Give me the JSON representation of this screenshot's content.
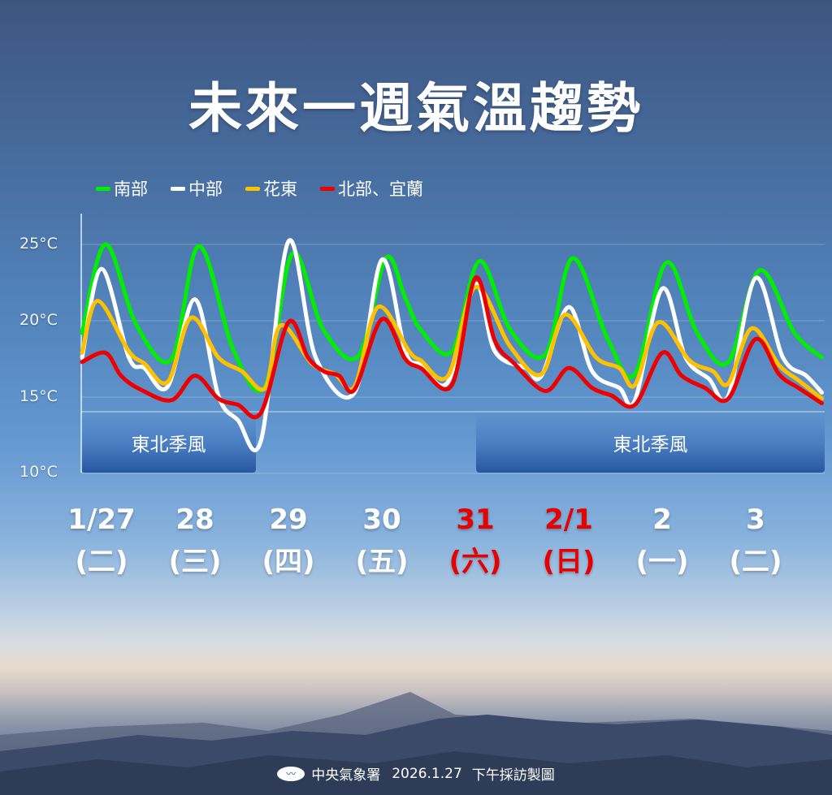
{
  "title": "未來一週氣溫趨勢",
  "chart_data": {
    "type": "line",
    "title": "未來一週氣溫趨勢",
    "ylim": [
      10,
      27
    ],
    "y_ticks": [
      "25°C",
      "20°C",
      "15°C",
      "10°C"
    ],
    "y_tick_values": [
      25,
      20,
      15,
      10
    ],
    "grid": true,
    "legend": "top",
    "x_days": [
      {
        "date": "1/27",
        "weekday": "(二)",
        "color": "#ffffff"
      },
      {
        "date": "28",
        "weekday": "(三)",
        "color": "#ffffff"
      },
      {
        "date": "29",
        "weekday": "(四)",
        "color": "#ffffff"
      },
      {
        "date": "30",
        "weekday": "(五)",
        "color": "#ffffff"
      },
      {
        "date": "31",
        "weekday": "(六)",
        "color": "#e60000"
      },
      {
        "date": "2/1",
        "weekday": "(日)",
        "color": "#e60000"
      },
      {
        "date": "2",
        "weekday": "(一)",
        "color": "#ffffff"
      },
      {
        "date": "3",
        "weekday": "(二)",
        "color": "#ffffff"
      }
    ],
    "annotations": [
      {
        "text": "東北季風",
        "from": "1/27 07",
        "to": "1/29 00"
      },
      {
        "text": "東北季風",
        "from": "1/31 12",
        "to": "2/4 05"
      }
    ],
    "series": [
      {
        "name": "南部",
        "color": "#00ee00",
        "points": [
          [
            "1/27 07",
            19.2
          ],
          [
            "1/27 13",
            25.0
          ],
          [
            "1/27 21",
            19.7
          ],
          [
            "1/28 06",
            17.5
          ],
          [
            "1/28 13",
            24.9
          ],
          [
            "1/28 22",
            18.0
          ],
          [
            "1/29 06",
            15.7
          ],
          [
            "1/29 13",
            24.4
          ],
          [
            "1/29 21",
            19.4
          ],
          [
            "1/30 06",
            17.7
          ],
          [
            "1/30 13",
            24.1
          ],
          [
            "1/30 18",
            21.5
          ],
          [
            "1/30 22",
            19.4
          ],
          [
            "1/31 06",
            18.0
          ],
          [
            "1/31 13",
            23.9
          ],
          [
            "1/31 21",
            19.4
          ],
          [
            "2/1 06",
            17.8
          ],
          [
            "2/1 13",
            24.1
          ],
          [
            "2/1 22",
            18.8
          ],
          [
            "2/2 05",
            16.5
          ],
          [
            "2/2 13",
            23.8
          ],
          [
            "2/2 21",
            19.2
          ],
          [
            "2/3 05",
            17.3
          ],
          [
            "2/3 13",
            23.3
          ],
          [
            "2/3 22",
            19.2
          ],
          [
            "2/4 05",
            17.6
          ]
        ]
      },
      {
        "name": "中部",
        "color": "#ffffff",
        "points": [
          [
            "1/27 07",
            17.6
          ],
          [
            "1/27 12",
            23.4
          ],
          [
            "1/27 19",
            17.6
          ],
          [
            "1/27 23",
            16.9
          ],
          [
            "1/28 05",
            15.7
          ],
          [
            "1/28 12",
            21.4
          ],
          [
            "1/28 18",
            15.1
          ],
          [
            "1/28 23",
            13.5
          ],
          [
            "1/29 05",
            12.2
          ],
          [
            "1/29 12",
            25.2
          ],
          [
            "1/29 19",
            17.6
          ],
          [
            "1/30 05",
            15.3
          ],
          [
            "1/30 12",
            24.0
          ],
          [
            "1/30 18",
            18.0
          ],
          [
            "1/30 22",
            17.1
          ],
          [
            "1/31 05",
            16.0
          ],
          [
            "1/31 12",
            22.4
          ],
          [
            "1/31 17",
            18.0
          ],
          [
            "2/1 01",
            16.9
          ],
          [
            "2/1 05",
            16.4
          ],
          [
            "2/1 12",
            20.9
          ],
          [
            "2/1 18",
            16.7
          ],
          [
            "2/2 01",
            15.6
          ],
          [
            "2/2 05",
            14.8
          ],
          [
            "2/2 12",
            22.1
          ],
          [
            "2/2 18",
            17.6
          ],
          [
            "2/3 00",
            16.2
          ],
          [
            "2/3 05",
            15.1
          ],
          [
            "2/3 12",
            22.8
          ],
          [
            "2/3 19",
            17.6
          ],
          [
            "2/4 01",
            16.4
          ],
          [
            "2/4 05",
            15.3
          ]
        ]
      },
      {
        "name": "花東",
        "color": "#ffc000",
        "points": [
          [
            "1/27 07",
            17.9
          ],
          [
            "1/27 11",
            21.3
          ],
          [
            "1/27 19",
            18.0
          ],
          [
            "1/27 23",
            17.2
          ],
          [
            "1/28 05",
            16.0
          ],
          [
            "1/28 11",
            20.2
          ],
          [
            "1/28 18",
            17.6
          ],
          [
            "1/29 00",
            16.7
          ],
          [
            "1/29 06",
            15.6
          ],
          [
            "1/29 10",
            19.7
          ],
          [
            "1/29 18",
            17.2
          ],
          [
            "1/30 00",
            16.5
          ],
          [
            "1/30 05",
            15.7
          ],
          [
            "1/30 11",
            20.9
          ],
          [
            "1/30 19",
            18.0
          ],
          [
            "1/30 22",
            17.4
          ],
          [
            "1/31 05",
            16.4
          ],
          [
            "1/31 12",
            22.2
          ],
          [
            "1/31 21",
            18.3
          ],
          [
            "2/1 05",
            16.5
          ],
          [
            "2/1 11",
            20.4
          ],
          [
            "2/1 19",
            17.6
          ],
          [
            "2/2 01",
            16.9
          ],
          [
            "2/2 05",
            15.8
          ],
          [
            "2/2 11",
            19.9
          ],
          [
            "2/2 19",
            17.4
          ],
          [
            "2/3 01",
            16.7
          ],
          [
            "2/3 05",
            15.9
          ],
          [
            "2/3 11",
            19.5
          ],
          [
            "2/3 18",
            17.1
          ],
          [
            "2/3 23",
            16.1
          ],
          [
            "2/4 05",
            14.9
          ]
        ]
      },
      {
        "name": "北部、宜蘭",
        "color": "#ee0000",
        "points": [
          [
            "1/27 07",
            17.3
          ],
          [
            "1/27 13",
            17.9
          ],
          [
            "1/27 17",
            16.4
          ],
          [
            "1/27 22",
            15.5
          ],
          [
            "1/28 06",
            14.8
          ],
          [
            "1/28 12",
            16.4
          ],
          [
            "1/28 18",
            14.9
          ],
          [
            "1/28 23",
            14.5
          ],
          [
            "1/29 05",
            14.0
          ],
          [
            "1/29 12",
            19.9
          ],
          [
            "1/29 17",
            17.6
          ],
          [
            "1/29 21",
            16.7
          ],
          [
            "1/30 01",
            16.4
          ],
          [
            "1/30 05",
            15.5
          ],
          [
            "1/30 12",
            20.1
          ],
          [
            "1/30 18",
            17.5
          ],
          [
            "1/30 22",
            16.9
          ],
          [
            "1/31 06",
            15.8
          ],
          [
            "1/31 12",
            22.8
          ],
          [
            "1/31 17",
            18.7
          ],
          [
            "1/31 22",
            17.2
          ],
          [
            "2/1 06",
            15.4
          ],
          [
            "2/1 12",
            16.9
          ],
          [
            "2/1 18",
            15.6
          ],
          [
            "2/1 23",
            15.1
          ],
          [
            "2/2 05",
            14.5
          ],
          [
            "2/2 12",
            17.9
          ],
          [
            "2/2 17",
            16.4
          ],
          [
            "2/2 23",
            15.6
          ],
          [
            "2/3 05",
            14.9
          ],
          [
            "2/3 12",
            18.8
          ],
          [
            "2/3 18",
            16.5
          ],
          [
            "2/3 23",
            15.6
          ],
          [
            "2/4 05",
            14.6
          ]
        ]
      }
    ]
  },
  "footer": {
    "agency": "中央氣象署",
    "date": "2026.1.27",
    "note": "下午採訪製圖"
  }
}
